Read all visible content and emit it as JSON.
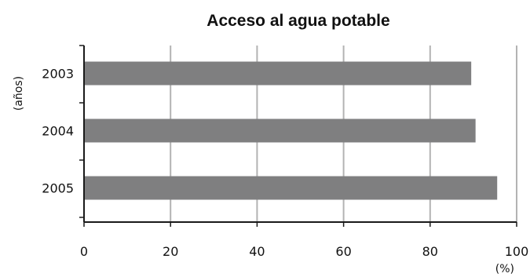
{
  "chart_data": {
    "type": "bar",
    "orientation": "horizontal",
    "title": "Acceso al agua potable",
    "xlabel": "(%)",
    "ylabel": "(años)",
    "categories": [
      "2003",
      "2004",
      "2005"
    ],
    "values": [
      89.5,
      90.5,
      95.5
    ],
    "xlim": [
      0,
      100
    ],
    "xticks": [
      "0",
      "20",
      "40",
      "60",
      "80",
      "100"
    ],
    "grid": "vertical",
    "legend": "none",
    "colors": {
      "bar": "#7f7f80",
      "grid": "#b3b3b3",
      "axis": "#1a1a1a",
      "text": "#111111"
    }
  }
}
